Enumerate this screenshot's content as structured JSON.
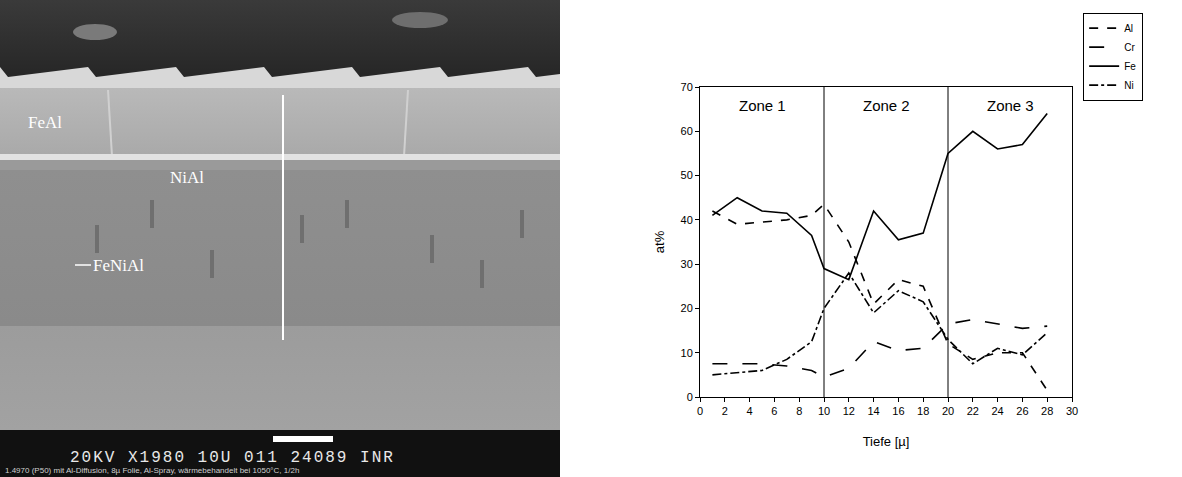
{
  "micrograph": {
    "layer_labels": [
      "FeAl",
      "NiAl",
      "FeNiAl"
    ],
    "scale_bar_text": "20KV X1980 10U 011 24089 INR",
    "caption": "1.4970 (P50) mit Al-Diffusion, 8µ Folie, Al-Spray, wärmebehandelt bei 1050°C, 1/2h"
  },
  "chart_data": {
    "type": "line",
    "x_label": "Tiefe [µ]",
    "y_label": "at%",
    "xlim": [
      0,
      30
    ],
    "xticks": [
      0,
      2,
      4,
      6,
      8,
      10,
      12,
      14,
      16,
      18,
      20,
      22,
      24,
      26,
      28,
      30
    ],
    "ylim": [
      0,
      70
    ],
    "yticks": [
      0,
      10,
      20,
      30,
      40,
      50,
      60,
      70
    ],
    "grid": false,
    "legend": "top right",
    "zones": [
      {
        "label": "Zone 1",
        "from": 0,
        "to": 10
      },
      {
        "label": "Zone 2",
        "from": 10,
        "to": 20
      },
      {
        "label": "Zone 3",
        "from": 20,
        "to": 30
      }
    ],
    "x": [
      1,
      3,
      5,
      7,
      9,
      10,
      12,
      14,
      16,
      18,
      20,
      22,
      24,
      26,
      28
    ],
    "series": [
      {
        "name": "Al",
        "color": "#000000",
        "line_style": "dash",
        "values": [
          42,
          39,
          39.5,
          40,
          41,
          43.5,
          35,
          21,
          26.5,
          25,
          12,
          8.5,
          10,
          10,
          1.5
        ]
      },
      {
        "name": "Cr",
        "color": "#000000",
        "line_style": "longdash",
        "values": [
          7.5,
          7.5,
          7.5,
          7,
          6,
          4.5,
          6.5,
          12.5,
          10.5,
          11,
          16.5,
          17.5,
          16.5,
          15.5,
          16
        ]
      },
      {
        "name": "Fe",
        "color": "#000000",
        "line_style": "solid",
        "values": [
          41,
          45,
          42,
          41.5,
          36.5,
          29,
          26.5,
          42,
          35.5,
          37,
          55,
          60,
          56,
          57,
          64
        ]
      },
      {
        "name": "Ni",
        "color": "#000000",
        "line_style": "dashdot",
        "values": [
          5,
          5.5,
          6,
          8.5,
          12.5,
          20,
          28,
          19,
          24,
          21.5,
          13,
          7.5,
          11,
          9.5,
          14.5
        ]
      }
    ]
  }
}
